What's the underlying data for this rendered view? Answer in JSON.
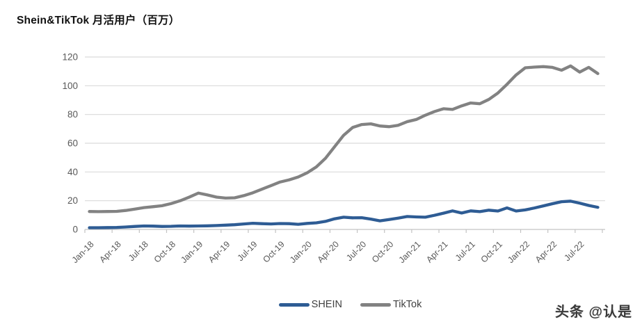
{
  "title": "Shein&TikTok 月活用户（百万）",
  "watermark": {
    "text": "头条 @认是"
  },
  "colors": {
    "shein_blue": "#2e5c94",
    "tiktok_gray": "#828282",
    "gridline": "#d9d9d9",
    "axis_line": "#c3c3c3",
    "axis_text": "#595959",
    "legend_text": "#404040",
    "title_text": "#111111"
  },
  "chart_data": {
    "type": "line",
    "title": "Shein&TikTok 月活用户（百万）",
    "xlabel": "",
    "ylabel": "",
    "ylim": [
      0,
      120
    ],
    "yticks": [
      0,
      20,
      40,
      60,
      80,
      100,
      120
    ],
    "grid": "horizontal",
    "legend_position": "bottom",
    "x_frequency": "monthly",
    "x_tick_labels": [
      "Jan-18",
      "Apr-18",
      "Jul-18",
      "Oct-18",
      "Jan-19",
      "Apr-19",
      "Jul-19",
      "Oct-19",
      "Jan-20",
      "Apr-20",
      "Jul-20",
      "Oct-20",
      "Jan-21",
      "Apr-21",
      "Jul-21",
      "Oct-21",
      "Jan-22",
      "Apr-22",
      "Jul-22"
    ],
    "x": [
      "Jan-18",
      "Feb-18",
      "Mar-18",
      "Apr-18",
      "May-18",
      "Jun-18",
      "Jul-18",
      "Aug-18",
      "Sep-18",
      "Oct-18",
      "Nov-18",
      "Dec-18",
      "Jan-19",
      "Feb-19",
      "Mar-19",
      "Apr-19",
      "May-19",
      "Jun-19",
      "Jul-19",
      "Aug-19",
      "Sep-19",
      "Oct-19",
      "Nov-19",
      "Dec-19",
      "Jan-20",
      "Feb-20",
      "Mar-20",
      "Apr-20",
      "May-20",
      "Jun-20",
      "Jul-20",
      "Aug-20",
      "Sep-20",
      "Oct-20",
      "Nov-20",
      "Dec-20",
      "Jan-21",
      "Feb-21",
      "Mar-21",
      "Apr-21",
      "May-21",
      "Jun-21",
      "Jul-21",
      "Aug-21",
      "Sep-21",
      "Oct-21",
      "Nov-21",
      "Dec-21",
      "Jan-22",
      "Feb-22",
      "Mar-22",
      "Apr-22",
      "May-22",
      "Jun-22",
      "Jul-22",
      "Aug-22",
      "Sep-22"
    ],
    "series": [
      {
        "name": "SHEIN",
        "color": "#2e5c94",
        "values": [
          1.2,
          1.2,
          1.3,
          1.4,
          1.7,
          2.1,
          2.4,
          2.3,
          2.1,
          2.2,
          2.4,
          2.3,
          2.4,
          2.5,
          2.7,
          3.0,
          3.3,
          3.8,
          4.3,
          4.0,
          3.8,
          4.1,
          4.0,
          3.6,
          4.2,
          4.6,
          5.6,
          7.4,
          8.5,
          8.1,
          8.2,
          7.2,
          6.0,
          6.9,
          7.9,
          9.0,
          8.7,
          8.5,
          9.8,
          11.3,
          12.9,
          11.4,
          12.9,
          12.4,
          13.4,
          12.8,
          15.0,
          12.8,
          13.6,
          14.9,
          16.4,
          17.9,
          19.3,
          19.7,
          18.3,
          16.7,
          15.4
        ]
      },
      {
        "name": "TikTok",
        "color": "#828282",
        "values": [
          12.5,
          12.4,
          12.5,
          12.6,
          13.2,
          14.2,
          15.2,
          15.8,
          16.5,
          18.0,
          20.0,
          22.5,
          25.3,
          24.0,
          22.5,
          21.8,
          22.0,
          23.5,
          25.5,
          28.0,
          30.5,
          33.0,
          34.5,
          36.5,
          39.5,
          43.5,
          49.5,
          57.5,
          65.5,
          71.0,
          73.0,
          73.5,
          72.0,
          71.5,
          72.5,
          75.0,
          76.5,
          79.5,
          82.0,
          84.0,
          83.5,
          86.0,
          88.0,
          87.5,
          90.5,
          95.0,
          101.0,
          107.5,
          112.5,
          113.0,
          113.3,
          112.8,
          110.8,
          113.8,
          109.5,
          112.8,
          108.5
        ]
      }
    ]
  }
}
